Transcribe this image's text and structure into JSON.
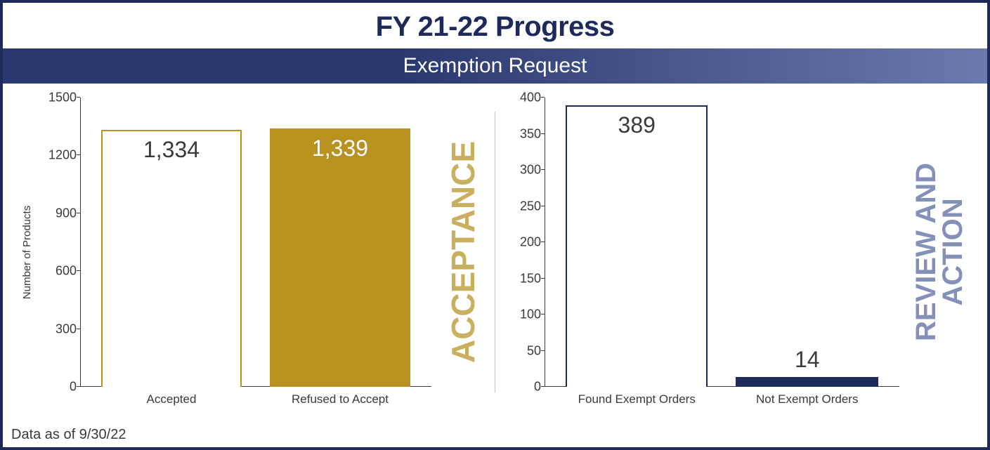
{
  "header": {
    "title": "FY 21-22 Progress",
    "subtitle": "Exemption Request",
    "title_color": "#1e2a5a",
    "title_fontsize": 40,
    "subtitle_bg_start": "#2a3870",
    "subtitle_bg_end": "#6b7aad",
    "subtitle_color": "#ffffff",
    "subtitle_fontsize": 30
  },
  "footer": {
    "note": "Data as of 9/30/22",
    "color": "#3a3a3a",
    "fontsize": 20
  },
  "border_color": "#1e2a5a",
  "background_color": "#ffffff",
  "chart_left": {
    "type": "bar",
    "y_axis_label": "Number of Products",
    "side_label": "ACCEPTANCE",
    "side_label_color": "#c9b060",
    "ylim": [
      0,
      1500
    ],
    "ytick_step": 300,
    "yticks": [
      0,
      300,
      600,
      900,
      1200,
      1500
    ],
    "axis_color": "#3a3a3a",
    "tick_fontsize": 18,
    "label_fontsize": 15,
    "value_fontsize": 32,
    "xlabel_fontsize": 17,
    "side_label_fontsize": 46,
    "bars": [
      {
        "category": "Accepted",
        "value": 1334,
        "display": "1,334",
        "fill": "#ffffff",
        "border": "#b8911f",
        "border_width": 2,
        "value_color": "#3a3a3a",
        "value_position": "inside"
      },
      {
        "category": "Refused to Accept",
        "value": 1339,
        "display": "1,339",
        "fill": "#b8911f",
        "border": "#b8911f",
        "border_width": 2,
        "value_color": "#ffffff",
        "value_position": "inside"
      }
    ]
  },
  "chart_right": {
    "type": "bar",
    "side_label_line1": "REVIEW AND",
    "side_label_line2": "ACTION",
    "side_label_color": "#8590b8",
    "ylim": [
      0,
      400
    ],
    "ytick_step": 50,
    "yticks": [
      0,
      50,
      100,
      150,
      200,
      250,
      300,
      350,
      400
    ],
    "axis_color": "#3a3a3a",
    "tick_fontsize": 18,
    "value_fontsize": 32,
    "xlabel_fontsize": 17,
    "side_label_fontsize": 40,
    "bars": [
      {
        "category": "Found Exempt Orders",
        "value": 389,
        "display": "389",
        "fill": "#ffffff",
        "border": "#1e2a5a",
        "border_width": 2,
        "value_color": "#3a3a3a",
        "value_position": "inside"
      },
      {
        "category": "Not Exempt Orders",
        "value": 14,
        "display": "14",
        "fill": "#1e2a5a",
        "border": "#1e2a5a",
        "border_width": 2,
        "value_color": "#3a3a3a",
        "value_position": "above"
      }
    ]
  }
}
